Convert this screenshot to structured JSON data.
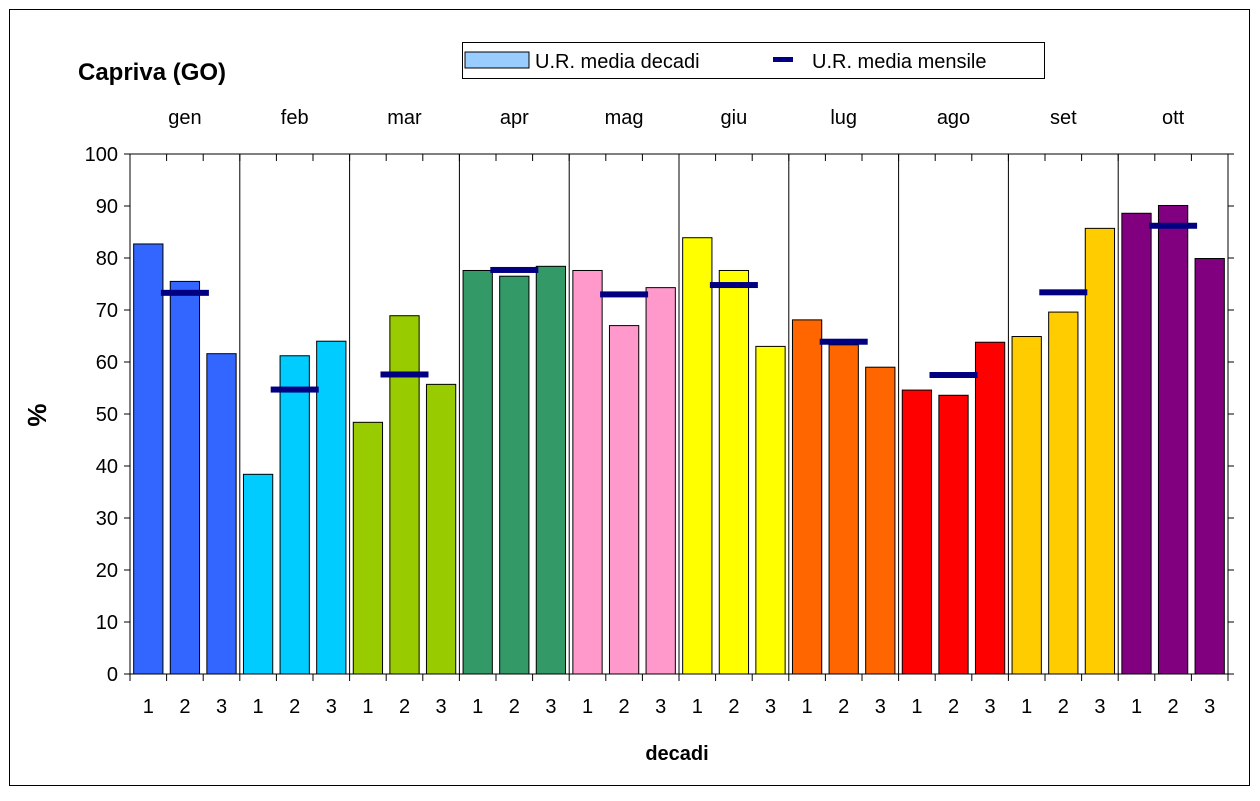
{
  "chart_data": {
    "type": "bar",
    "title": "Capriva (GO)",
    "xlabel": "decadi",
    "ylabel": "%",
    "ylim": [
      0,
      100
    ],
    "yticks": [
      0,
      10,
      20,
      30,
      40,
      50,
      60,
      70,
      80,
      90,
      100
    ],
    "legend": {
      "placement": "top",
      "items": [
        {
          "label": "U.R.  media decadi",
          "kind": "bar",
          "color": "#99ccff"
        },
        {
          "label": "U.R. media mensile",
          "kind": "line",
          "color": "#000080"
        }
      ]
    },
    "months": [
      {
        "name": "gen",
        "color": "#3366ff",
        "decadi": [
          82.7,
          75.5,
          61.6
        ],
        "mensile": 73.3
      },
      {
        "name": "feb",
        "color": "#00ccff",
        "decadi": [
          38.4,
          61.2,
          64.0
        ],
        "mensile": 54.7
      },
      {
        "name": "mar",
        "color": "#99cc00",
        "decadi": [
          48.4,
          68.9,
          55.7
        ],
        "mensile": 57.6
      },
      {
        "name": "apr",
        "color": "#339966",
        "decadi": [
          77.6,
          76.5,
          78.4
        ],
        "mensile": 77.7
      },
      {
        "name": "mag",
        "color": "#ff99cc",
        "decadi": [
          77.6,
          67.0,
          74.3
        ],
        "mensile": 73.0
      },
      {
        "name": "giu",
        "color": "#ffff00",
        "decadi": [
          83.9,
          77.6,
          63.0
        ],
        "mensile": 74.8
      },
      {
        "name": "lug",
        "color": "#ff6600",
        "decadi": [
          68.1,
          63.3,
          59.0
        ],
        "mensile": 63.9
      },
      {
        "name": "ago",
        "color": "#ff0000",
        "decadi": [
          54.6,
          53.6,
          63.8
        ],
        "mensile": 57.5
      },
      {
        "name": "set",
        "color": "#ffcc00",
        "decadi": [
          64.9,
          69.6,
          85.7
        ],
        "mensile": 73.4
      },
      {
        "name": "ott",
        "color": "#800080",
        "decadi": [
          88.6,
          90.1,
          79.9
        ],
        "mensile": 86.2
      }
    ],
    "decade_labels": [
      "1",
      "2",
      "3"
    ],
    "mensile_color": "#000080"
  }
}
